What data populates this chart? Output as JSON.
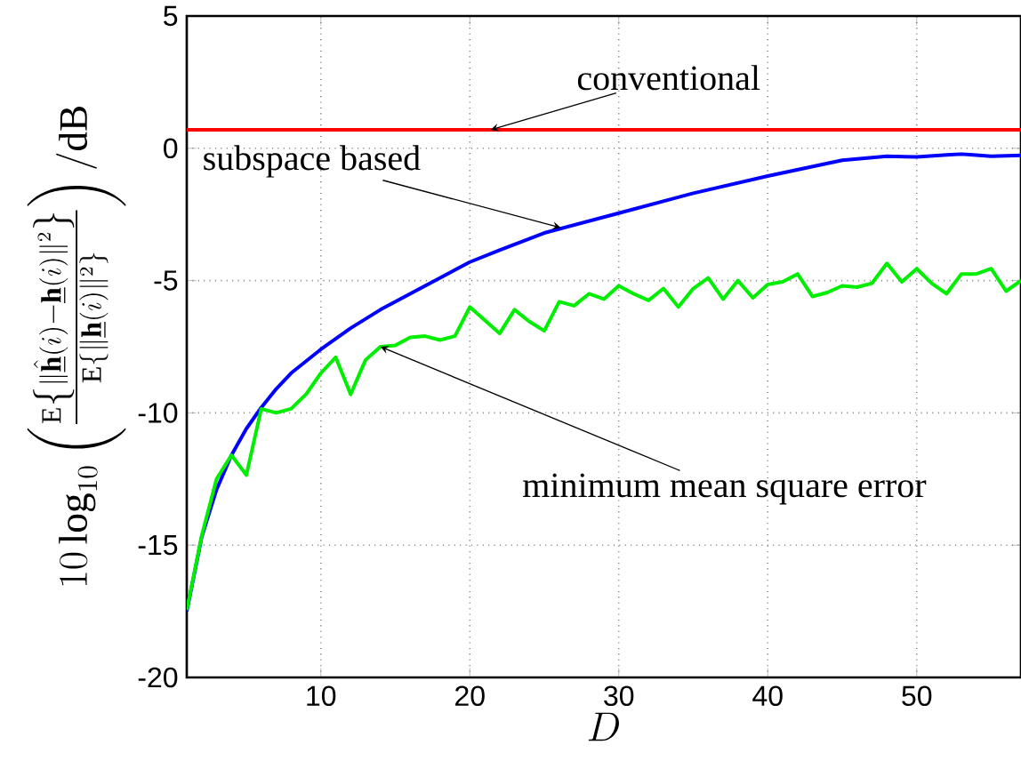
{
  "chart_data": {
    "type": "line",
    "xlabel": "D",
    "ylabel": "10\\log_{10}\\left(\\frac{\\mathrm{E}\\left\\{\\|\\hat{\\underline{\\mathbf{h}}}(i)-\\underline{\\mathbf{h}}(i)\\|^2\\right\\}}{\\mathrm{E}\\left\\{\\|\\underline{\\mathbf{h}}(i)\\|^2\\right\\}}\\right)/\\mathrm{dB}",
    "xlim": [
      1,
      57
    ],
    "ylim": [
      -20,
      5
    ],
    "xticks": [
      10,
      20,
      30,
      40,
      50
    ],
    "yticks": [
      -20,
      -15,
      -10,
      -5,
      0,
      5
    ],
    "grid": true,
    "series": [
      {
        "color": "#ff0000",
        "x": [
          1,
          57
        ],
        "values": [
          0.7,
          0.7
        ]
      },
      {
        "color": "#0000ff",
        "x": [
          1,
          2,
          3,
          4,
          5,
          6,
          7,
          8,
          10,
          12,
          14,
          16,
          18,
          20,
          22,
          25,
          30,
          35,
          40,
          45,
          48,
          50,
          52,
          53,
          55,
          57
        ],
        "values": [
          -17.5,
          -14.7,
          -12.9,
          -11.6,
          -10.6,
          -9.8,
          -9.1,
          -8.5,
          -7.6,
          -6.8,
          -6.1,
          -5.5,
          -4.9,
          -4.3,
          -3.85,
          -3.2,
          -2.45,
          -1.7,
          -1.05,
          -0.45,
          -0.3,
          -0.33,
          -0.25,
          -0.22,
          -0.3,
          -0.27
        ]
      },
      {
        "color": "#00ee00",
        "x": [
          1,
          2,
          3,
          4,
          5,
          6,
          7,
          8,
          9,
          10,
          11,
          12,
          13,
          14,
          15,
          16,
          17,
          18,
          19,
          20,
          21,
          22,
          23,
          24,
          25,
          26,
          27,
          28,
          29,
          30,
          31,
          32,
          33,
          34,
          35,
          36,
          37,
          38,
          39,
          40,
          41,
          42,
          43,
          44,
          45,
          46,
          47,
          48,
          49,
          50,
          51,
          52,
          53,
          54,
          55,
          56,
          57
        ],
        "values": [
          -17.45,
          -14.65,
          -12.5,
          -11.6,
          -12.35,
          -9.85,
          -10.0,
          -9.85,
          -9.3,
          -8.5,
          -7.9,
          -9.3,
          -8.0,
          -7.5,
          -7.45,
          -7.15,
          -7.1,
          -7.25,
          -7.1,
          -6.0,
          -6.5,
          -7.0,
          -6.1,
          -6.55,
          -6.9,
          -5.8,
          -5.95,
          -5.5,
          -5.7,
          -5.2,
          -5.5,
          -5.75,
          -5.3,
          -6.0,
          -5.3,
          -4.9,
          -5.7,
          -5.0,
          -5.65,
          -5.15,
          -5.05,
          -4.75,
          -5.6,
          -5.45,
          -5.2,
          -5.25,
          -5.1,
          -4.35,
          -5.05,
          -4.55,
          -5.1,
          -5.5,
          -4.75,
          -4.75,
          -4.55,
          -5.4,
          -5.0
        ]
      }
    ],
    "annotations": [
      {
        "text": "conventional",
        "x": 21.4,
        "y": 0.7
      },
      {
        "text": "subspace based",
        "x": 26.1,
        "y": -3.0
      },
      {
        "text": "minimum mean square error",
        "x": 14,
        "y": -7.5
      }
    ]
  }
}
